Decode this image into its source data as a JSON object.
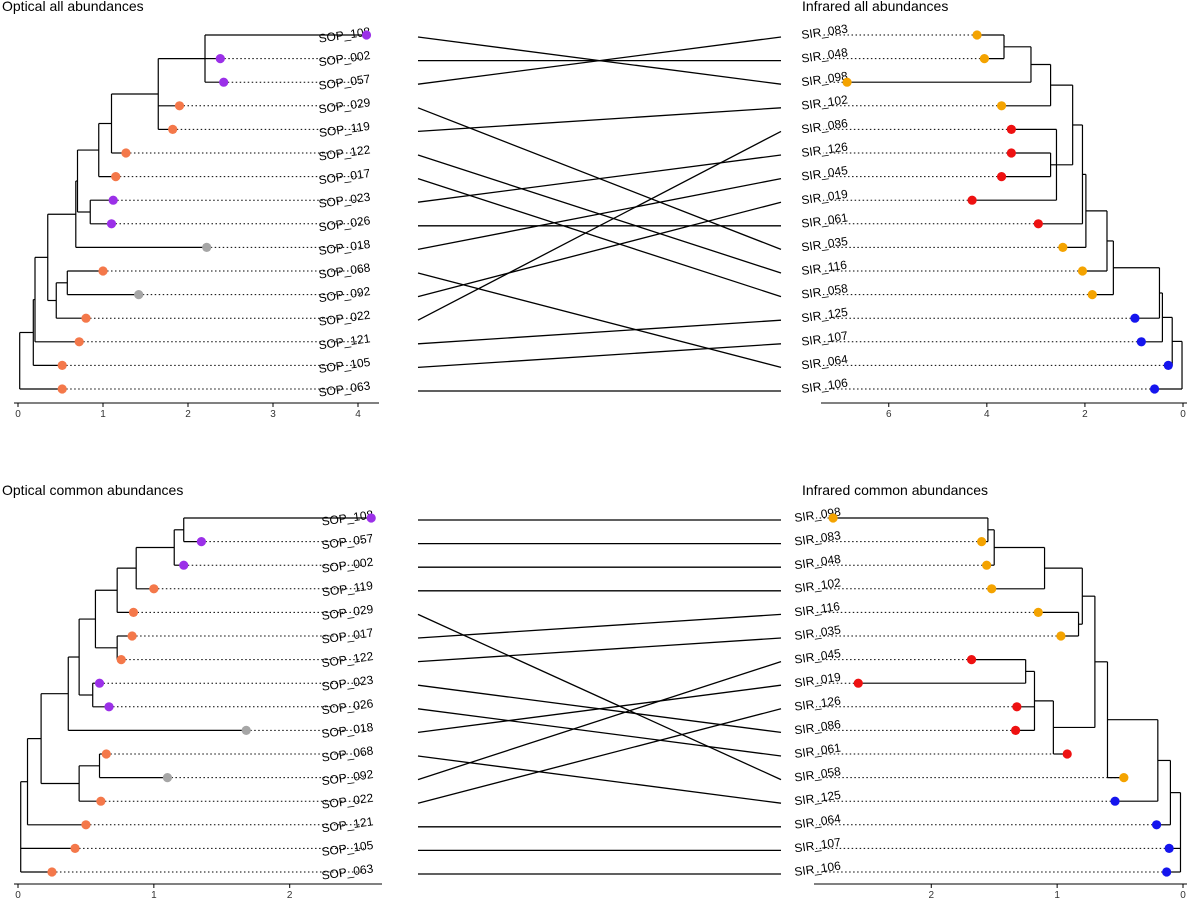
{
  "colors": {
    "purple": "#9B30E8",
    "salmon": "#F4784A",
    "grey": "#A6A6A6",
    "orange": "#F4A300",
    "red": "#EE1111",
    "blue": "#1515EE"
  },
  "panels": [
    {
      "id": "optical-all",
      "title": "Optical all abundances",
      "side": "left",
      "xlim": [
        0,
        4.2
      ],
      "ticks": [
        0,
        1,
        2,
        3,
        4
      ],
      "tips": [
        {
          "label": "SOP_108",
          "x": 4.1,
          "color": "purple"
        },
        {
          "label": "SOP_002",
          "x": 2.38,
          "color": "purple"
        },
        {
          "label": "SOP_057",
          "x": 2.42,
          "color": "purple"
        },
        {
          "label": "SOP_029",
          "x": 1.9,
          "color": "salmon"
        },
        {
          "label": "SOP_119",
          "x": 1.82,
          "color": "salmon"
        },
        {
          "label": "SOP_122",
          "x": 1.27,
          "color": "salmon"
        },
        {
          "label": "SOP_017",
          "x": 1.15,
          "color": "salmon"
        },
        {
          "label": "SOP_023",
          "x": 1.12,
          "color": "purple"
        },
        {
          "label": "SOP_026",
          "x": 1.1,
          "color": "purple"
        },
        {
          "label": "SOP_018",
          "x": 2.22,
          "color": "grey"
        },
        {
          "label": "SOP_068",
          "x": 1.0,
          "color": "salmon"
        },
        {
          "label": "SOP_092",
          "x": 1.42,
          "color": "grey"
        },
        {
          "label": "SOP_022",
          "x": 0.8,
          "color": "salmon"
        },
        {
          "label": "SOP_121",
          "x": 0.72,
          "color": "salmon"
        },
        {
          "label": "SOP_105",
          "x": 0.52,
          "color": "salmon"
        },
        {
          "label": "SOP_063",
          "x": 0.52,
          "color": "salmon"
        }
      ],
      "nodes": [
        {
          "x": 2.2,
          "c": [
            0,
            1,
            2
          ]
        },
        {
          "x": 1.65,
          "c": [
            16,
            3,
            4
          ]
        },
        {
          "x": 1.1,
          "c": [
            17,
            5
          ]
        },
        {
          "x": 0.95,
          "c": [
            18,
            6
          ]
        },
        {
          "x": 0.85,
          "c": [
            7,
            8
          ]
        },
        {
          "x": 0.7,
          "c": [
            19,
            20
          ]
        },
        {
          "x": 0.68,
          "c": [
            21,
            9
          ]
        },
        {
          "x": 0.58,
          "c": [
            10,
            11
          ]
        },
        {
          "x": 0.45,
          "c": [
            23,
            12
          ]
        },
        {
          "x": 0.35,
          "c": [
            22,
            24
          ]
        },
        {
          "x": 0.2,
          "c": [
            25,
            13
          ]
        },
        {
          "x": 0.18,
          "c": [
            26,
            14
          ]
        },
        {
          "x": 0.02,
          "c": [
            27,
            15
          ]
        }
      ]
    },
    {
      "id": "infrared-all",
      "title": "Infrared all abundances",
      "side": "right",
      "xlim": [
        0,
        7.3
      ],
      "ticks": [
        0,
        2,
        4,
        6
      ],
      "tips": [
        {
          "label": "SIR_083",
          "x": 4.2,
          "color": "orange"
        },
        {
          "label": "SIR_048",
          "x": 4.05,
          "color": "orange"
        },
        {
          "label": "SIR_098",
          "x": 6.85,
          "color": "orange"
        },
        {
          "label": "SIR_102",
          "x": 3.7,
          "color": "orange"
        },
        {
          "label": "SIR_086",
          "x": 3.5,
          "color": "red"
        },
        {
          "label": "SIR_126",
          "x": 3.5,
          "color": "red"
        },
        {
          "label": "SIR_045",
          "x": 3.7,
          "color": "red"
        },
        {
          "label": "SIR_019",
          "x": 4.3,
          "color": "red"
        },
        {
          "label": "SIR_061",
          "x": 2.95,
          "color": "red"
        },
        {
          "label": "SIR_035",
          "x": 2.45,
          "color": "orange"
        },
        {
          "label": "SIR_116",
          "x": 2.05,
          "color": "orange"
        },
        {
          "label": "SIR_058",
          "x": 1.85,
          "color": "orange"
        },
        {
          "label": "SIR_125",
          "x": 0.98,
          "color": "blue"
        },
        {
          "label": "SIR_107",
          "x": 0.85,
          "color": "blue"
        },
        {
          "label": "SIR_064",
          "x": 0.3,
          "color": "blue"
        },
        {
          "label": "SIR_106",
          "x": 0.58,
          "color": "blue"
        }
      ],
      "nodes": [
        {
          "x": 3.65,
          "c": [
            0,
            1
          ]
        },
        {
          "x": 3.1,
          "c": [
            16,
            2
          ]
        },
        {
          "x": 2.7,
          "c": [
            17,
            3
          ]
        },
        {
          "x": 2.7,
          "c": [
            5,
            6
          ]
        },
        {
          "x": 2.58,
          "c": [
            4,
            19,
            7
          ]
        },
        {
          "x": 2.25,
          "c": [
            18,
            20
          ]
        },
        {
          "x": 2.05,
          "c": [
            21,
            8
          ]
        },
        {
          "x": 1.98,
          "c": [
            22,
            9
          ]
        },
        {
          "x": 1.55,
          "c": [
            23,
            10
          ]
        },
        {
          "x": 1.42,
          "c": [
            24,
            11
          ]
        },
        {
          "x": 0.48,
          "c": [
            25,
            12
          ]
        },
        {
          "x": 0.42,
          "c": [
            26,
            13
          ]
        },
        {
          "x": 0.22,
          "c": [
            27,
            14
          ]
        },
        {
          "x": 0.02,
          "c": [
            28,
            15
          ]
        }
      ]
    },
    {
      "id": "optical-common",
      "title": "Optical common abundances",
      "side": "left",
      "xlim": [
        0,
        2.65
      ],
      "ticks": [
        0,
        1,
        2
      ],
      "tips": [
        {
          "label": "SOP_108",
          "x": 2.6,
          "color": "purple"
        },
        {
          "label": "SOP_057",
          "x": 1.35,
          "color": "purple"
        },
        {
          "label": "SOP_002",
          "x": 1.22,
          "color": "purple"
        },
        {
          "label": "SOP_119",
          "x": 1.0,
          "color": "salmon"
        },
        {
          "label": "SOP_029",
          "x": 0.85,
          "color": "salmon"
        },
        {
          "label": "SOP_017",
          "x": 0.84,
          "color": "salmon"
        },
        {
          "label": "SOP_122",
          "x": 0.76,
          "color": "salmon"
        },
        {
          "label": "SOP_023",
          "x": 0.6,
          "color": "purple"
        },
        {
          "label": "SOP_026",
          "x": 0.67,
          "color": "purple"
        },
        {
          "label": "SOP_018",
          "x": 1.68,
          "color": "grey"
        },
        {
          "label": "SOP_068",
          "x": 0.65,
          "color": "salmon"
        },
        {
          "label": "SOP_092",
          "x": 1.1,
          "color": "grey"
        },
        {
          "label": "SOP_022",
          "x": 0.61,
          "color": "salmon"
        },
        {
          "label": "SOP_121",
          "x": 0.5,
          "color": "salmon"
        },
        {
          "label": "SOP_105",
          "x": 0.42,
          "color": "salmon"
        },
        {
          "label": "SOP_063",
          "x": 0.25,
          "color": "salmon"
        }
      ],
      "nodes": [
        {
          "x": 1.22,
          "c": [
            0,
            1
          ]
        },
        {
          "x": 1.15,
          "c": [
            16,
            2
          ]
        },
        {
          "x": 0.87,
          "c": [
            17,
            3
          ]
        },
        {
          "x": 0.73,
          "c": [
            18,
            4
          ]
        },
        {
          "x": 0.73,
          "c": [
            5,
            6
          ]
        },
        {
          "x": 0.57,
          "c": [
            19,
            20
          ]
        },
        {
          "x": 0.55,
          "c": [
            7,
            8
          ]
        },
        {
          "x": 0.45,
          "c": [
            21,
            22
          ]
        },
        {
          "x": 0.37,
          "c": [
            23,
            9
          ]
        },
        {
          "x": 0.6,
          "c": [
            10,
            11
          ]
        },
        {
          "x": 0.45,
          "c": [
            25,
            12
          ]
        },
        {
          "x": 0.17,
          "c": [
            24,
            26
          ]
        },
        {
          "x": 0.07,
          "c": [
            27,
            13
          ]
        },
        {
          "x": 0.02,
          "c": [
            28,
            14,
            15
          ]
        }
      ]
    },
    {
      "id": "infrared-common",
      "title": "Infrared common abundances",
      "side": "right",
      "xlim": [
        0,
        2.9
      ],
      "ticks": [
        0,
        1,
        2
      ],
      "tips": [
        {
          "label": "SIR_098",
          "x": 2.78,
          "color": "orange"
        },
        {
          "label": "SIR_083",
          "x": 1.6,
          "color": "orange"
        },
        {
          "label": "SIR_048",
          "x": 1.56,
          "color": "orange"
        },
        {
          "label": "SIR_102",
          "x": 1.52,
          "color": "orange"
        },
        {
          "label": "SIR_116",
          "x": 1.15,
          "color": "orange"
        },
        {
          "label": "SIR_035",
          "x": 0.97,
          "color": "orange"
        },
        {
          "label": "SIR_045",
          "x": 1.68,
          "color": "red"
        },
        {
          "label": "SIR_019",
          "x": 2.58,
          "color": "red"
        },
        {
          "label": "SIR_126",
          "x": 1.32,
          "color": "red"
        },
        {
          "label": "SIR_086",
          "x": 1.33,
          "color": "red"
        },
        {
          "label": "SIR_061",
          "x": 0.92,
          "color": "red"
        },
        {
          "label": "SIR_058",
          "x": 0.47,
          "color": "orange"
        },
        {
          "label": "SIR_125",
          "x": 0.54,
          "color": "blue"
        },
        {
          "label": "SIR_064",
          "x": 0.21,
          "color": "blue"
        },
        {
          "label": "SIR_107",
          "x": 0.11,
          "color": "blue"
        },
        {
          "label": "SIR_106",
          "x": 0.13,
          "color": "blue"
        }
      ],
      "nodes": [
        {
          "x": 1.55,
          "c": [
            0,
            1
          ]
        },
        {
          "x": 1.5,
          "c": [
            16,
            2
          ]
        },
        {
          "x": 1.1,
          "c": [
            17,
            3
          ]
        },
        {
          "x": 0.83,
          "c": [
            4,
            5
          ]
        },
        {
          "x": 0.8,
          "c": [
            18,
            19
          ]
        },
        {
          "x": 1.25,
          "c": [
            6,
            7
          ]
        },
        {
          "x": 1.18,
          "c": [
            21,
            8,
            9
          ]
        },
        {
          "x": 1.03,
          "c": [
            22,
            10
          ]
        },
        {
          "x": 0.7,
          "c": [
            20,
            23
          ]
        },
        {
          "x": 0.6,
          "c": [
            24,
            11
          ]
        },
        {
          "x": 0.2,
          "c": [
            25,
            12
          ]
        },
        {
          "x": 0.1,
          "c": [
            26,
            13
          ]
        },
        {
          "x": 0.02,
          "c": [
            27,
            14,
            15
          ]
        }
      ]
    }
  ],
  "tanglegrams": [
    {
      "left": "optical-all",
      "right": "infrared-all",
      "links": [
        [
          0,
          2
        ],
        [
          1,
          1
        ],
        [
          2,
          0
        ],
        [
          3,
          9
        ],
        [
          4,
          3
        ],
        [
          5,
          10
        ],
        [
          6,
          11
        ],
        [
          7,
          5
        ],
        [
          8,
          8
        ],
        [
          9,
          6
        ],
        [
          10,
          14
        ],
        [
          11,
          7
        ],
        [
          12,
          4
        ],
        [
          13,
          12
        ],
        [
          14,
          13
        ],
        [
          15,
          15
        ]
      ]
    },
    {
      "left": "optical-common",
      "right": "infrared-common",
      "links": [
        [
          0,
          0
        ],
        [
          1,
          1
        ],
        [
          2,
          2
        ],
        [
          3,
          3
        ],
        [
          4,
          11
        ],
        [
          5,
          4
        ],
        [
          6,
          5
        ],
        [
          7,
          9
        ],
        [
          8,
          10
        ],
        [
          9,
          7
        ],
        [
          10,
          12
        ],
        [
          11,
          6
        ],
        [
          12,
          8
        ],
        [
          13,
          13
        ],
        [
          14,
          14
        ],
        [
          15,
          15
        ]
      ]
    }
  ]
}
